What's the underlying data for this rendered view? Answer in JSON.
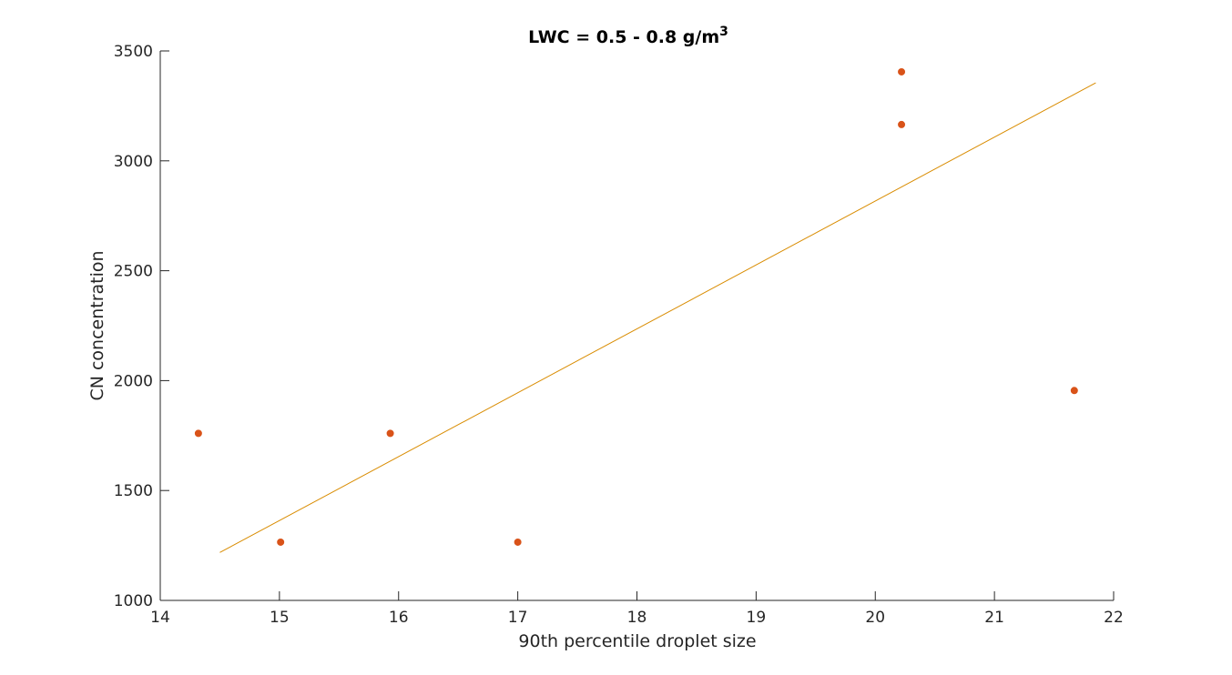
{
  "chart_data": {
    "type": "scatter",
    "title_main": "LWC = 0.5 - 0.8 g/m",
    "title_superscript": "3",
    "xlabel": "90th percentile droplet size",
    "ylabel": "CN concentration",
    "xlim": [
      14,
      22
    ],
    "ylim": [
      1000,
      3500
    ],
    "x_ticks": [
      "14",
      "15",
      "16",
      "17",
      "18",
      "19",
      "20",
      "21",
      "22"
    ],
    "y_ticks": [
      "1000",
      "1500",
      "2000",
      "2500",
      "3000",
      "3500"
    ],
    "grid": false,
    "marker_color": "#d95319",
    "fit_line_color": "#d98c00",
    "points": [
      {
        "x": 14.32,
        "y": 1760
      },
      {
        "x": 15.01,
        "y": 1265
      },
      {
        "x": 15.93,
        "y": 1760
      },
      {
        "x": 17.0,
        "y": 1265
      },
      {
        "x": 20.22,
        "y": 3405
      },
      {
        "x": 20.22,
        "y": 3165
      },
      {
        "x": 21.67,
        "y": 1955
      }
    ],
    "fit_line": {
      "x": [
        14.5,
        21.85
      ],
      "y": [
        1218,
        3355
      ]
    }
  }
}
